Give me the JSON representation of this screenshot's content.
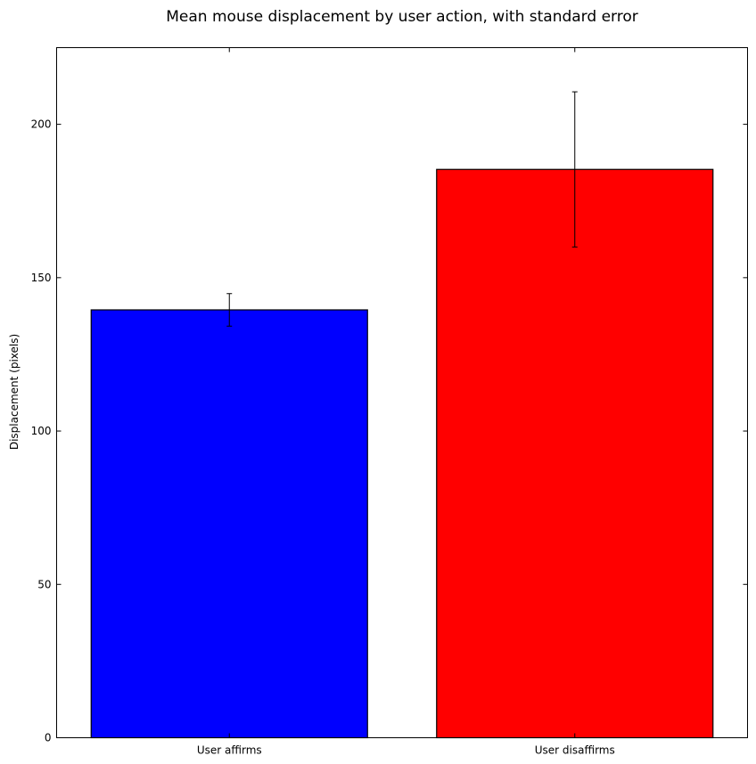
{
  "chart_data": {
    "type": "bar",
    "title": "Mean mouse displacement by user action, with standard error",
    "xlabel": "",
    "ylabel": "Displacement (pixels)",
    "categories": [
      "User affirms",
      "User disaffirms"
    ],
    "values": [
      139.5,
      185.3
    ],
    "errors": [
      5.3,
      25.3
    ],
    "colors": [
      "#0000ff",
      "#ff0000"
    ],
    "ylim": [
      0,
      225
    ],
    "yticks": [
      0,
      50,
      100,
      150,
      200
    ],
    "grid": false,
    "legend": "none"
  }
}
